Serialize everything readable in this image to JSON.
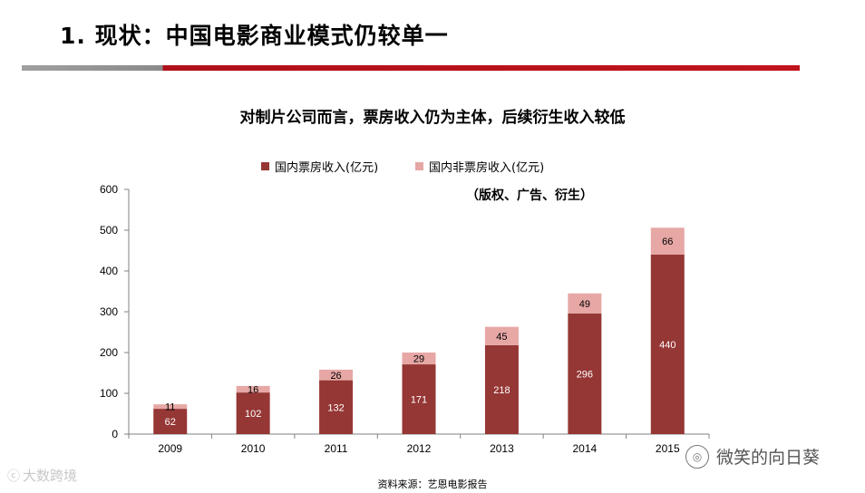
{
  "slide": {
    "title": "1. 现状：中国电影商业模式仍较单一",
    "subtitle": "对制片公司而言，票房收入仍为主体，后续衍生收入较低",
    "legend_note": "（版权、广告、衍生）",
    "source": "资料来源：艺恩电影报告"
  },
  "watermarks": {
    "left_text": "大数跨境",
    "right_text": "微笑的向日葵"
  },
  "colors": {
    "box_office": "#953735",
    "non_box_office": "#e6a7a5",
    "accent_rule": "#c0141c"
  },
  "chart_data": {
    "type": "bar",
    "stacked": true,
    "categories": [
      "2009",
      "2010",
      "2011",
      "2012",
      "2013",
      "2014",
      "2015"
    ],
    "series": [
      {
        "name": "国内票房收入(亿元)",
        "values": [
          62,
          102,
          132,
          171,
          218,
          296,
          440
        ]
      },
      {
        "name": "国内非票房收入(亿元)",
        "values": [
          11,
          16,
          26,
          29,
          45,
          49,
          66
        ]
      }
    ],
    "y_ticks": [
      "0",
      "100",
      "200",
      "300",
      "400",
      "500",
      "600"
    ],
    "ylim": [
      0,
      600
    ],
    "title": "",
    "xlabel": "",
    "ylabel": "",
    "legend_position": "top"
  }
}
